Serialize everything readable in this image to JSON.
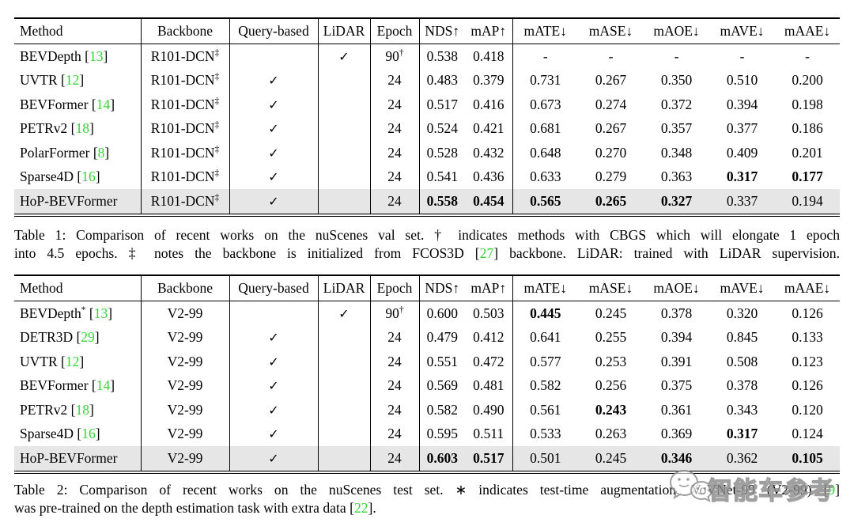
{
  "page": {
    "background": "#ffffff"
  },
  "colors": {
    "citation_green": "#35d435",
    "highlight_row": "#e6e6e6",
    "watermark_gray": "#8f8f8f"
  },
  "icons": {
    "checkmark": "✓",
    "up_arrow": "↑",
    "down_arrow": "↓"
  },
  "chart_data": [
    {
      "type": "table",
      "title": "Comparison of recent works on the nuScenes val set",
      "headers": [
        "Method",
        "Backbone",
        "Query-based",
        "LiDAR",
        "Epoch",
        "NDS↑",
        "mAP↑",
        "mATE↓",
        "mASE↓",
        "mAOE↓",
        "mAVE↓",
        "mAAE↓"
      ],
      "rows": [
        {
          "method": "BEVDepth",
          "msup": "",
          "cite": "13",
          "backbone": "R101-DCN",
          "bsup": "‡",
          "query": false,
          "lidar": true,
          "epoch": "90",
          "esup": "†",
          "vals": [
            [
              "0.538",
              0
            ],
            [
              "0.418",
              0
            ],
            [
              "-",
              0
            ],
            [
              "-",
              0
            ],
            [
              "-",
              0
            ],
            [
              "-",
              0
            ],
            [
              "-",
              0
            ]
          ],
          "hl": 0
        },
        {
          "method": "UVTR",
          "msup": "",
          "cite": "12",
          "backbone": "R101-DCN",
          "bsup": "‡",
          "query": true,
          "lidar": false,
          "epoch": "24",
          "esup": "",
          "vals": [
            [
              "0.483",
              0
            ],
            [
              "0.379",
              0
            ],
            [
              "0.731",
              0
            ],
            [
              "0.267",
              0
            ],
            [
              "0.350",
              0
            ],
            [
              "0.510",
              0
            ],
            [
              "0.200",
              0
            ]
          ],
          "hl": 0
        },
        {
          "method": "BEVFormer",
          "msup": "",
          "cite": "14",
          "backbone": "R101-DCN",
          "bsup": "‡",
          "query": true,
          "lidar": false,
          "epoch": "24",
          "esup": "",
          "vals": [
            [
              "0.517",
              0
            ],
            [
              "0.416",
              0
            ],
            [
              "0.673",
              0
            ],
            [
              "0.274",
              0
            ],
            [
              "0.372",
              0
            ],
            [
              "0.394",
              0
            ],
            [
              "0.198",
              0
            ]
          ],
          "hl": 0
        },
        {
          "method": "PETRv2",
          "msup": "",
          "cite": "18",
          "backbone": "R101-DCN",
          "bsup": "‡",
          "query": true,
          "lidar": false,
          "epoch": "24",
          "esup": "",
          "vals": [
            [
              "0.524",
              0
            ],
            [
              "0.421",
              0
            ],
            [
              "0.681",
              0
            ],
            [
              "0.267",
              0
            ],
            [
              "0.357",
              0
            ],
            [
              "0.377",
              0
            ],
            [
              "0.186",
              0
            ]
          ],
          "hl": 0
        },
        {
          "method": "PolarFormer",
          "msup": "",
          "cite": "8",
          "backbone": "R101-DCN",
          "bsup": "‡",
          "query": true,
          "lidar": false,
          "epoch": "24",
          "esup": "",
          "vals": [
            [
              "0.528",
              0
            ],
            [
              "0.432",
              0
            ],
            [
              "0.648",
              0
            ],
            [
              "0.270",
              0
            ],
            [
              "0.348",
              0
            ],
            [
              "0.409",
              0
            ],
            [
              "0.201",
              0
            ]
          ],
          "hl": 0
        },
        {
          "method": "Sparse4D",
          "msup": "",
          "cite": "16",
          "backbone": "R101-DCN",
          "bsup": "‡",
          "query": true,
          "lidar": false,
          "epoch": "24",
          "esup": "",
          "vals": [
            [
              "0.541",
              0
            ],
            [
              "0.436",
              0
            ],
            [
              "0.633",
              0
            ],
            [
              "0.279",
              0
            ],
            [
              "0.363",
              0
            ],
            [
              "0.317",
              1
            ],
            [
              "0.177",
              1
            ]
          ],
          "hl": 0
        },
        {
          "method": "HoP-BEVFormer",
          "msup": "",
          "cite": "",
          "backbone": "R101-DCN",
          "bsup": "‡",
          "query": true,
          "lidar": false,
          "epoch": "24",
          "esup": "",
          "vals": [
            [
              "0.558",
              1
            ],
            [
              "0.454",
              1
            ],
            [
              "0.565",
              1
            ],
            [
              "0.265",
              1
            ],
            [
              "0.327",
              1
            ],
            [
              "0.337",
              0
            ],
            [
              "0.194",
              0
            ]
          ],
          "hl": 1
        }
      ]
    },
    {
      "type": "table",
      "title": "Comparison of recent works on the nuScenes test set",
      "headers": [
        "Method",
        "Backbone",
        "Query-based",
        "LiDAR",
        "Epoch",
        "NDS↑",
        "mAP↑",
        "mATE↓",
        "mASE↓",
        "mAOE↓",
        "mAVE↓",
        "mAAE↓"
      ],
      "rows": [
        {
          "method": "BEVDepth",
          "msup": "*",
          "cite": "13",
          "backbone": "V2-99",
          "bsup": "",
          "query": false,
          "lidar": true,
          "epoch": "90",
          "esup": "†",
          "vals": [
            [
              "0.600",
              0
            ],
            [
              "0.503",
              0
            ],
            [
              "0.445",
              1
            ],
            [
              "0.245",
              0
            ],
            [
              "0.378",
              0
            ],
            [
              "0.320",
              0
            ],
            [
              "0.126",
              0
            ]
          ],
          "hl": 0
        },
        {
          "method": "DETR3D",
          "msup": "",
          "cite": "29",
          "backbone": "V2-99",
          "bsup": "",
          "query": true,
          "lidar": false,
          "epoch": "24",
          "esup": "",
          "vals": [
            [
              "0.479",
              0
            ],
            [
              "0.412",
              0
            ],
            [
              "0.641",
              0
            ],
            [
              "0.255",
              0
            ],
            [
              "0.394",
              0
            ],
            [
              "0.845",
              0
            ],
            [
              "0.133",
              0
            ]
          ],
          "hl": 0
        },
        {
          "method": "UVTR",
          "msup": "",
          "cite": "12",
          "backbone": "V2-99",
          "bsup": "",
          "query": true,
          "lidar": false,
          "epoch": "24",
          "esup": "",
          "vals": [
            [
              "0.551",
              0
            ],
            [
              "0.472",
              0
            ],
            [
              "0.577",
              0
            ],
            [
              "0.253",
              0
            ],
            [
              "0.391",
              0
            ],
            [
              "0.508",
              0
            ],
            [
              "0.123",
              0
            ]
          ],
          "hl": 0
        },
        {
          "method": "BEVFormer",
          "msup": "",
          "cite": "14",
          "backbone": "V2-99",
          "bsup": "",
          "query": true,
          "lidar": false,
          "epoch": "24",
          "esup": "",
          "vals": [
            [
              "0.569",
              0
            ],
            [
              "0.481",
              0
            ],
            [
              "0.582",
              0
            ],
            [
              "0.256",
              0
            ],
            [
              "0.375",
              0
            ],
            [
              "0.378",
              0
            ],
            [
              "0.126",
              0
            ]
          ],
          "hl": 0
        },
        {
          "method": "PETRv2",
          "msup": "",
          "cite": "18",
          "backbone": "V2-99",
          "bsup": "",
          "query": true,
          "lidar": false,
          "epoch": "24",
          "esup": "",
          "vals": [
            [
              "0.582",
              0
            ],
            [
              "0.490",
              0
            ],
            [
              "0.561",
              0
            ],
            [
              "0.243",
              1
            ],
            [
              "0.361",
              0
            ],
            [
              "0.343",
              0
            ],
            [
              "0.120",
              0
            ]
          ],
          "hl": 0
        },
        {
          "method": "Sparse4D",
          "msup": "",
          "cite": "16",
          "backbone": "V2-99",
          "bsup": "",
          "query": true,
          "lidar": false,
          "epoch": "24",
          "esup": "",
          "vals": [
            [
              "0.595",
              0
            ],
            [
              "0.511",
              0
            ],
            [
              "0.533",
              0
            ],
            [
              "0.263",
              0
            ],
            [
              "0.369",
              0
            ],
            [
              "0.317",
              1
            ],
            [
              "0.124",
              0
            ]
          ],
          "hl": 0
        },
        {
          "method": "HoP-BEVFormer",
          "msup": "",
          "cite": "",
          "backbone": "V2-99",
          "bsup": "",
          "query": true,
          "lidar": false,
          "epoch": "24",
          "esup": "",
          "vals": [
            [
              "0.603",
              1
            ],
            [
              "0.517",
              1
            ],
            [
              "0.501",
              0
            ],
            [
              "0.245",
              0
            ],
            [
              "0.346",
              1
            ],
            [
              "0.362",
              0
            ],
            [
              "0.105",
              1
            ]
          ],
          "hl": 1
        }
      ]
    }
  ],
  "captions": [
    {
      "lines": [
        {
          "fill": true,
          "segs": [
            {
              "t": "Table 1: Comparison of recent works on the nuScenes val set. † indicates methods with CBGS which will elongate 1 epoch"
            }
          ]
        },
        {
          "fill": true,
          "segs": [
            {
              "t": "into 4.5 epochs. ‡ notes the backbone is initialized from FCOS3D ["
            },
            {
              "t": "27",
              "green": true
            },
            {
              "t": "] backbone. LiDAR: trained with LiDAR supervision."
            }
          ]
        }
      ]
    },
    {
      "lines": [
        {
          "fill": true,
          "segs": [
            {
              "t": "Table 2: Comparison of recent works on the nuScenes test set. ∗ indicates test-time augmentation. VoVNet-99 (V2-99) ["
            },
            {
              "t": "9",
              "green": true
            },
            {
              "t": "]"
            }
          ]
        },
        {
          "fill": false,
          "segs": [
            {
              "t": "was pre-trained on the depth estimation task with extra data ["
            },
            {
              "t": "22",
              "green": true
            },
            {
              "t": "]."
            }
          ]
        }
      ]
    }
  ],
  "watermark": {
    "text": "智能车参考"
  }
}
